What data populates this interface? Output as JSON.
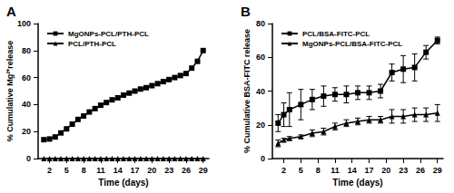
{
  "chart_data": [
    {
      "type": "line",
      "title": "A",
      "xlabel": "Time (days)",
      "ylabel": "% Cumulative Mg²⁺release",
      "x": [
        1,
        2,
        3,
        4,
        5,
        6,
        7,
        8,
        9,
        10,
        11,
        12,
        13,
        14,
        15,
        16,
        17,
        18,
        19,
        20,
        21,
        22,
        23,
        24,
        25,
        26,
        27,
        28,
        29
      ],
      "series": [
        {
          "name": "MgONPs-PCL/PTH-PCL",
          "color": "#000000",
          "marker": "square",
          "values": [
            14,
            14.5,
            16,
            19,
            22,
            25.5,
            29,
            31.5,
            34.5,
            37,
            39.5,
            41.5,
            43.5,
            45,
            47,
            48.5,
            50,
            51.5,
            52.5,
            54,
            55.5,
            57,
            58.5,
            60,
            61.5,
            63,
            67,
            72,
            80
          ]
        },
        {
          "name": "PCL/PTH-PCL",
          "color": "#000000",
          "marker": "triangle",
          "values": [
            0,
            0,
            0,
            0,
            0,
            0,
            0,
            0,
            0,
            0,
            0,
            0,
            0,
            0,
            0,
            0,
            0,
            0,
            0,
            0,
            0,
            0,
            0,
            0,
            0,
            0,
            0,
            0,
            0
          ]
        }
      ],
      "xlim": [
        0,
        30
      ],
      "xticks": [
        2,
        5,
        8,
        11,
        14,
        17,
        20,
        23,
        26,
        29
      ],
      "ylim": [
        0,
        100
      ],
      "yticks": [
        0,
        20,
        40,
        60,
        80,
        100
      ],
      "grid": false,
      "legend": "upper left"
    },
    {
      "type": "line",
      "title": "B",
      "xlabel": "Time (days)",
      "ylabel": "% Cumulative BSA-FITC release",
      "x": [
        1,
        2,
        3,
        5,
        7,
        9,
        11,
        13,
        15,
        17,
        19,
        21,
        23,
        25,
        27,
        29
      ],
      "series": [
        {
          "name": "PCL/BSA-FITC-PCL",
          "color": "#000000",
          "marker": "square",
          "values": [
            21,
            26,
            29,
            32,
            35,
            37,
            38,
            38,
            39,
            39,
            40,
            51,
            53,
            54,
            63,
            70
          ],
          "errors": [
            5,
            7,
            10,
            9,
            6,
            6,
            4,
            5,
            4,
            4,
            4,
            5,
            8,
            8,
            4,
            2
          ]
        },
        {
          "name": "MgONPs-PCL/BSA-FITC-PCL",
          "color": "#000000",
          "marker": "triangle",
          "values": [
            9,
            11,
            12,
            13,
            15,
            16,
            19,
            21,
            22,
            23,
            23,
            25,
            25,
            26,
            26,
            27
          ],
          "errors": [
            2,
            1,
            1,
            1,
            2,
            2,
            2,
            2,
            2,
            2,
            2,
            4,
            4,
            4,
            4,
            5
          ]
        }
      ],
      "xlim": [
        0,
        30
      ],
      "xticks": [
        2,
        5,
        8,
        11,
        14,
        17,
        20,
        23,
        26,
        29
      ],
      "ylim": [
        0,
        80
      ],
      "yticks": [
        0,
        20,
        40,
        60,
        80
      ],
      "grid": false,
      "legend": "upper left"
    }
  ]
}
